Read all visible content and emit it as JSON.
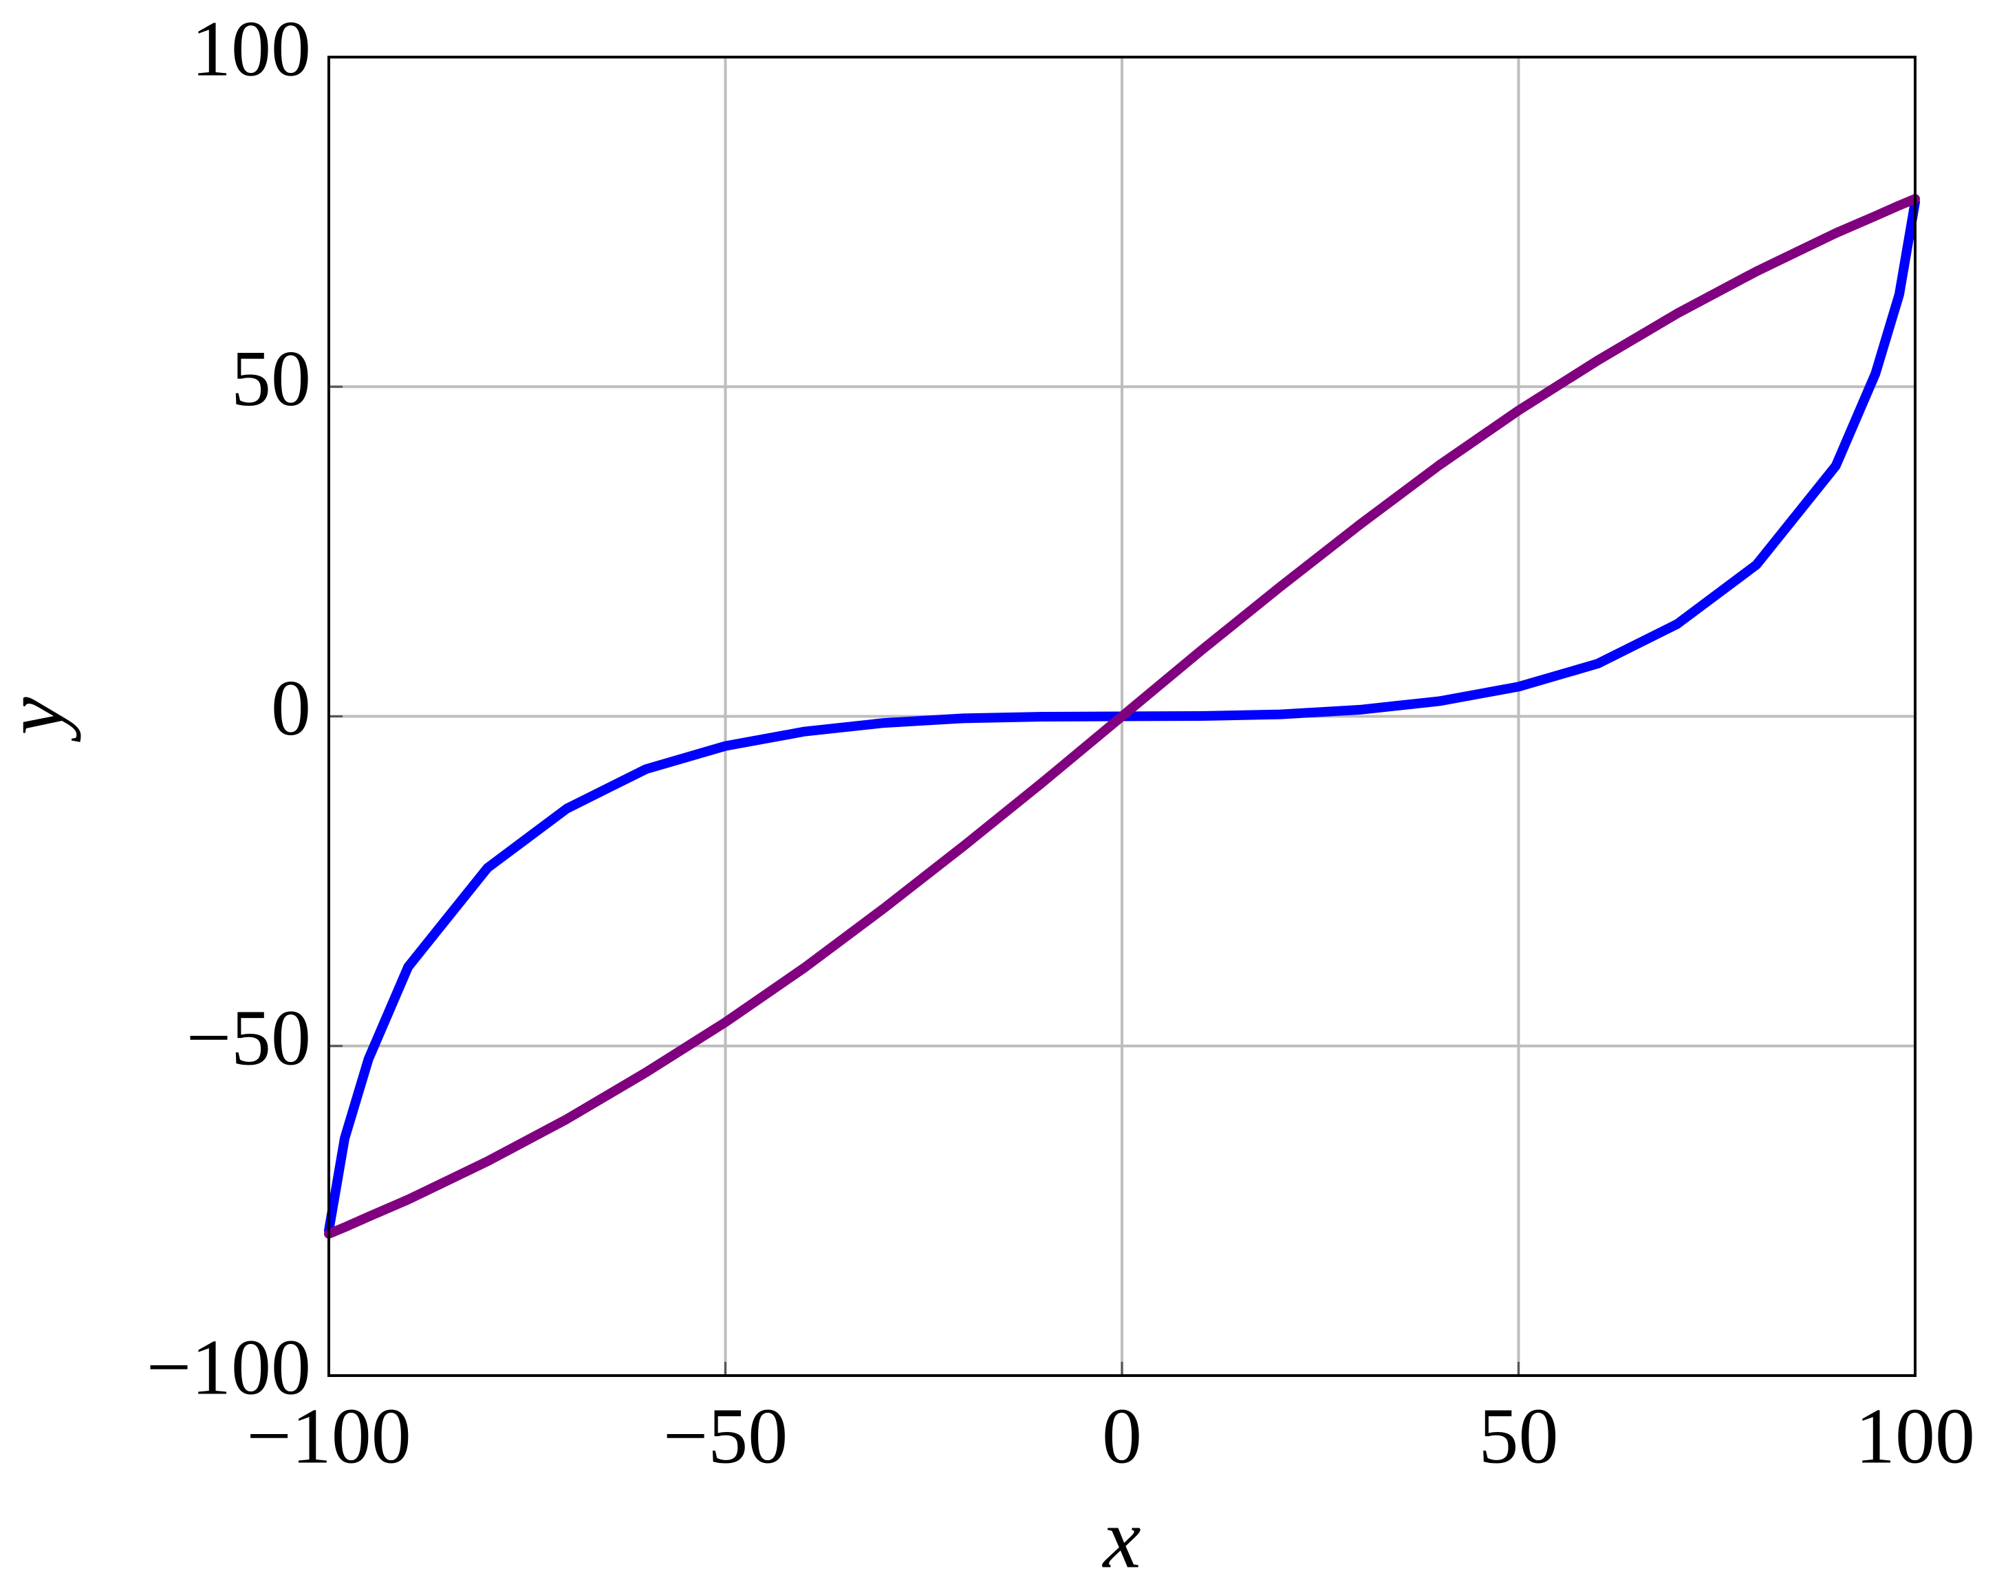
{
  "chart_data": {
    "type": "line",
    "x_label": "x",
    "y_label": "y",
    "x": [
      -100,
      -98,
      -95,
      -90,
      -80,
      -70,
      -60,
      -50,
      -40,
      -30,
      -20,
      -10,
      0,
      10,
      20,
      30,
      40,
      50,
      60,
      70,
      80,
      90,
      95,
      98,
      100
    ],
    "series": [
      {
        "color": "#0000ff",
        "values": [
          -78,
          -64,
          -52,
          -38,
          -23,
          -14,
          -8,
          -4.5,
          -2.3,
          -1,
          -0.3,
          -0.05,
          0,
          0.05,
          0.3,
          1,
          2.3,
          4.5,
          8,
          14,
          23,
          38,
          52,
          64,
          78
        ]
      },
      {
        "color": "#800080",
        "values": [
          -78.5,
          -77.5,
          -75.9,
          -73.3,
          -67.5,
          -61.1,
          -54,
          -46.4,
          -38.1,
          -29.1,
          -19.7,
          -10,
          0,
          10,
          19.7,
          29.1,
          38.1,
          46.4,
          54,
          61.1,
          67.5,
          73.3,
          75.9,
          77.5,
          78.5
        ]
      }
    ],
    "xlim": [
      -100,
      100
    ],
    "ylim": [
      -100,
      100
    ],
    "xticks": [
      {
        "value": -100,
        "label": "−100"
      },
      {
        "value": -50,
        "label": "−50"
      },
      0,
      50,
      100
    ],
    "yticks": [
      {
        "value": -100,
        "label": "−100"
      },
      {
        "value": -50,
        "label": "−50"
      },
      0,
      50,
      100
    ],
    "grid": true
  }
}
